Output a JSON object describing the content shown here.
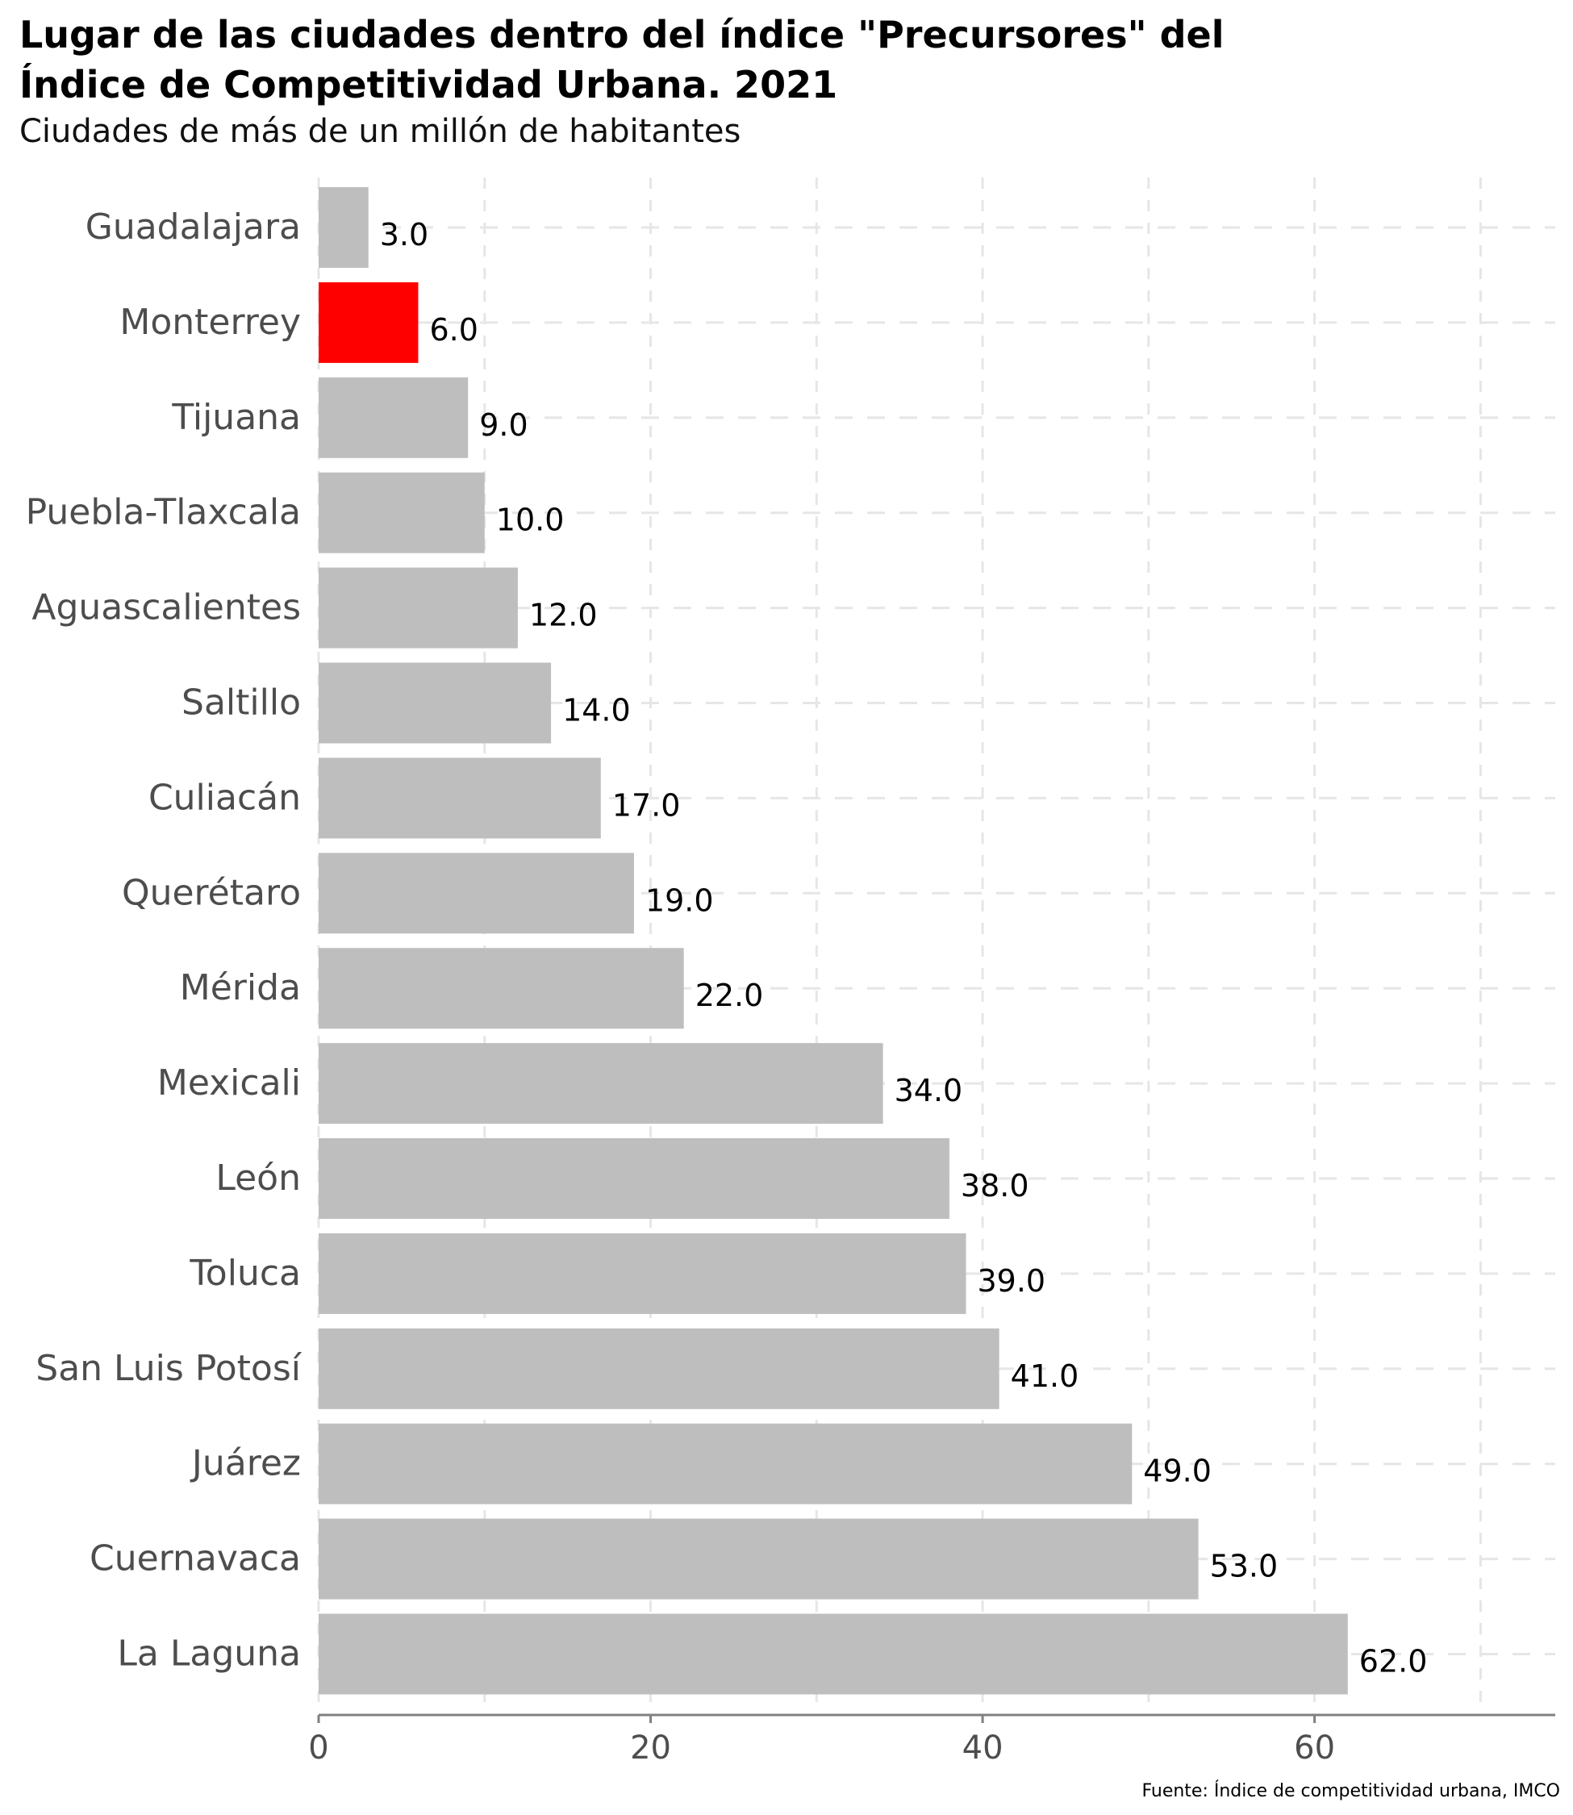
{
  "title_line1": "Lugar de las ciudades dentro del índice \"Precursores\" del",
  "title_line2": "Índice de Competitividad Urbana. 2021",
  "subtitle": "Ciudades de más de un millón de habitantes",
  "caption": "Fuente: Índice de competitividad urbana, IMCO",
  "colors": {
    "default_bar": "#bebebe",
    "highlight_bar": "#ff0000",
    "grid": "#e6e6e6",
    "axis": "#808080"
  },
  "chart_data": {
    "type": "bar",
    "orientation": "horizontal",
    "categories": [
      "Guadalajara",
      "Monterrey",
      "Tijuana",
      "Puebla-Tlaxcala",
      "Aguascalientes",
      "Saltillo",
      "Culiacán",
      "Querétaro",
      "Mérida",
      "Mexicali",
      "León",
      "Toluca",
      "San Luis Potosí",
      "Juárez",
      "Cuernavaca",
      "La Laguna"
    ],
    "values": [
      3,
      6,
      9,
      10,
      12,
      14,
      17,
      19,
      22,
      34,
      38,
      39,
      41,
      49,
      53,
      62
    ],
    "value_labels": [
      "3.0",
      "6.0",
      "9.0",
      "10.0",
      "12.0",
      "14.0",
      "17.0",
      "19.0",
      "22.0",
      "34.0",
      "38.0",
      "39.0",
      "41.0",
      "49.0",
      "53.0",
      "62.0"
    ],
    "highlight": "Monterrey",
    "xlim": [
      0,
      74.5
    ],
    "xticks": [
      0,
      20,
      40,
      60
    ],
    "xtick_labels": [
      "0",
      "20",
      "40",
      "60"
    ],
    "grid": true,
    "grid_style": "dashed",
    "xlabel": "",
    "ylabel": ""
  }
}
